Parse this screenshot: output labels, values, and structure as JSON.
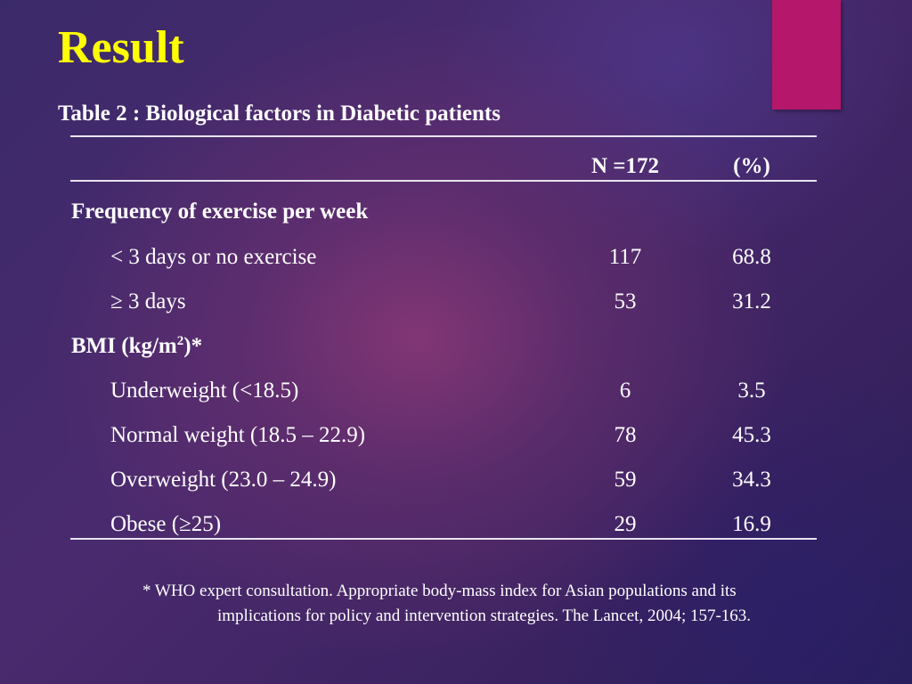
{
  "slide": {
    "title": "Result",
    "table_caption": "Table 2 : Biological factors in Diabetic patients",
    "accent_color": "#b5176a",
    "title_color": "#ffff00"
  },
  "table": {
    "headers": {
      "n": "N =172",
      "pct": "(%)"
    },
    "sections": [
      {
        "label": "Frequency of exercise per week",
        "rows": [
          {
            "label": "< 3 days or no exercise",
            "n": "117",
            "pct": "68.8"
          },
          {
            "label": "≥ 3 days",
            "n": "53",
            "pct": "31.2"
          }
        ]
      },
      {
        "label_prefix": "BMI (kg/m",
        "label_sup": "2",
        "label_suffix": ")*",
        "rows": [
          {
            "label": "Underweight (<18.5)",
            "n": "6",
            "pct": "3.5"
          },
          {
            "label": "Normal weight (18.5 – 22.9)",
            "n": "78",
            "pct": "45.3"
          },
          {
            "label": "Overweight (23.0 – 24.9)",
            "n": "59",
            "pct": "34.3"
          },
          {
            "label": "Obese (≥25)",
            "n": "29",
            "pct": "16.9"
          }
        ]
      }
    ]
  },
  "footnote": {
    "line1": "* WHO expert consultation. Appropriate body-mass index for Asian populations and its",
    "line2": "implications for policy and intervention strategies. The Lancet, 2004; 157-163."
  }
}
